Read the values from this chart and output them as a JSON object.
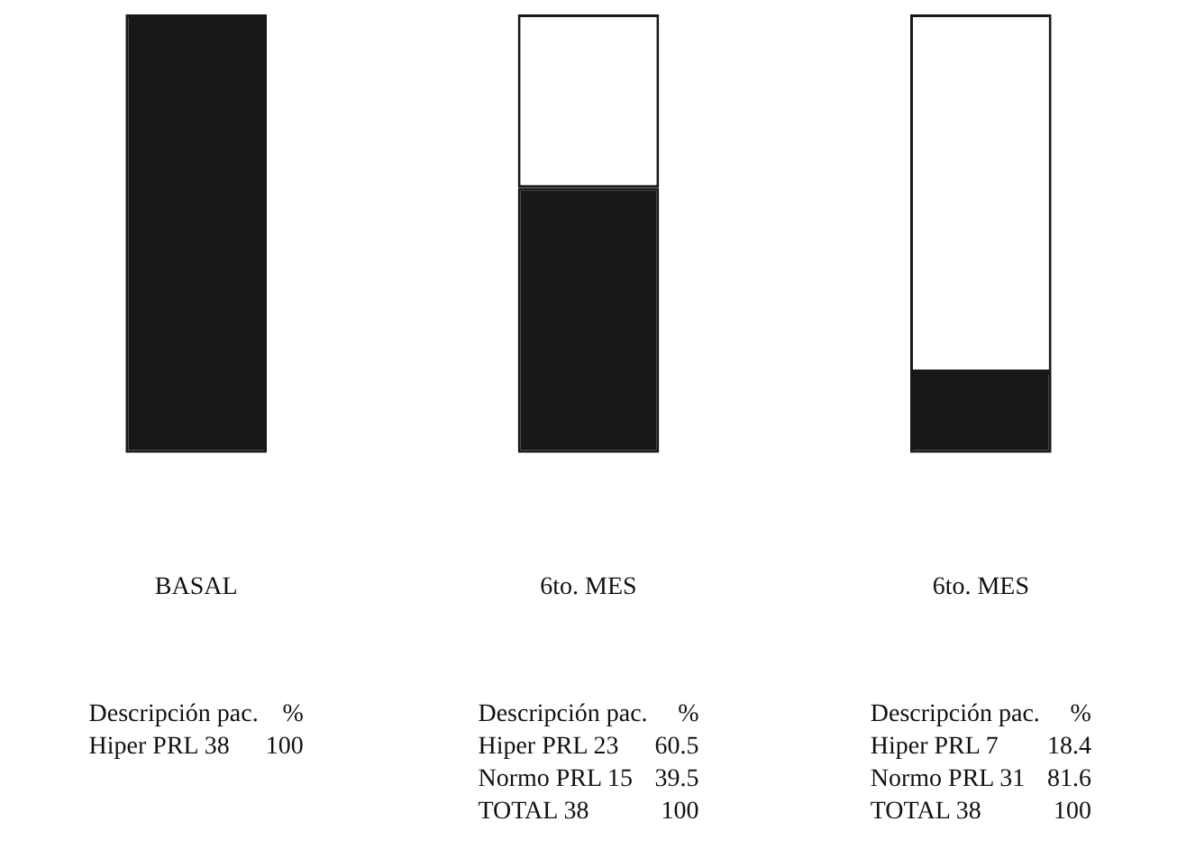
{
  "chart_data": {
    "type": "bar",
    "stacked": true,
    "categories": [
      "BASAL",
      "6to. MES",
      "6to. MES"
    ],
    "series": [
      {
        "color": "#181818",
        "values": [
          100,
          60.5,
          18.4
        ]
      },
      {
        "color": "#ffffff",
        "values": [
          null,
          39.5,
          81.6
        ]
      }
    ],
    "ylim": [
      0,
      100
    ],
    "tick_labels": "x",
    "grid": false,
    "legend": false,
    "data_labels": true,
    "annotations": [
      "Descripción pac. %\nHiper PRL 38",
      "Descripción pac. %\nHiper PRL 23\nNormo PRL 15\nTOTAL 38 100",
      "Descripción pac. %\nHiper PRL 7\nNormo PRL 31\nTOTAL 38 100"
    ]
  }
}
